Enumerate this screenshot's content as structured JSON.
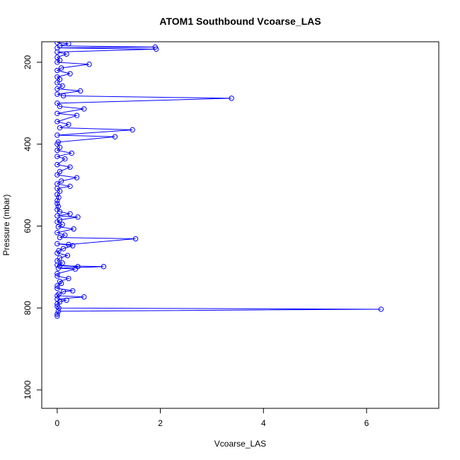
{
  "chart_data": {
    "type": "line",
    "title": "ATOM1 Southbound Vcoarse_LAS",
    "xlabel": "Vcoarse_LAS",
    "ylabel": "Pressure (mbar)",
    "xlim": [
      -0.3,
      7.4
    ],
    "ylim": [
      150,
      1045
    ],
    "y_reversed": true,
    "x_ticks": [
      "0",
      "2",
      "4",
      "6"
    ],
    "x_tick_values": [
      0,
      2,
      4,
      6
    ],
    "y_ticks": [
      "200",
      "400",
      "600",
      "800",
      "1000"
    ],
    "y_tick_values": [
      200,
      400,
      600,
      800,
      1000
    ],
    "grid": false,
    "series_color": "#0000ff",
    "marker": "open-circle",
    "series": [
      {
        "values_note_free": true,
        "points": [
          [
            0.0,
            820
          ],
          [
            0.0,
            815
          ],
          [
            0.02,
            808
          ],
          [
            6.28,
            803
          ],
          [
            0.03,
            800
          ],
          [
            0.0,
            796
          ],
          [
            0.0,
            790
          ],
          [
            0.05,
            785
          ],
          [
            0.18,
            781
          ],
          [
            0.0,
            778
          ],
          [
            0.52,
            773
          ],
          [
            0.0,
            770
          ],
          [
            0.03,
            766
          ],
          [
            0.12,
            760
          ],
          [
            0.3,
            758
          ],
          [
            0.0,
            752
          ],
          [
            0.0,
            746
          ],
          [
            0.08,
            740
          ],
          [
            0.05,
            735
          ],
          [
            0.22,
            728
          ],
          [
            0.0,
            722
          ],
          [
            0.0,
            716
          ],
          [
            0.35,
            705
          ],
          [
            0.02,
            703
          ],
          [
            0.9,
            699
          ],
          [
            0.05,
            697
          ],
          [
            0.4,
            699
          ],
          [
            0.0,
            695
          ],
          [
            0.1,
            690
          ],
          [
            0.0,
            685
          ],
          [
            0.05,
            678
          ],
          [
            0.2,
            672
          ],
          [
            0.0,
            666
          ],
          [
            0.03,
            660
          ],
          [
            0.12,
            655
          ],
          [
            0.3,
            648
          ],
          [
            0.0,
            643
          ],
          [
            0.22,
            645
          ],
          [
            1.52,
            631
          ],
          [
            0.05,
            628
          ],
          [
            0.15,
            622
          ],
          [
            0.0,
            616
          ],
          [
            0.32,
            607
          ],
          [
            0.02,
            602
          ],
          [
            0.1,
            596
          ],
          [
            0.0,
            590
          ],
          [
            0.05,
            585
          ],
          [
            0.4,
            578
          ],
          [
            0.0,
            575
          ],
          [
            0.25,
            570
          ],
          [
            0.05,
            565
          ],
          [
            0.0,
            560
          ],
          [
            0.02,
            552
          ],
          [
            0.0,
            545
          ],
          [
            0.0,
            538
          ],
          [
            0.03,
            530
          ],
          [
            0.0,
            523
          ],
          [
            0.05,
            515
          ],
          [
            0.0,
            508
          ],
          [
            0.25,
            503
          ],
          [
            0.0,
            497
          ],
          [
            0.08,
            490
          ],
          [
            0.38,
            482
          ],
          [
            0.0,
            475
          ],
          [
            0.05,
            467
          ],
          [
            0.25,
            456
          ],
          [
            0.0,
            450
          ],
          [
            0.15,
            436
          ],
          [
            0.0,
            430
          ],
          [
            0.28,
            422
          ],
          [
            0.0,
            415
          ],
          [
            0.05,
            408
          ],
          [
            0.0,
            400
          ],
          [
            0.02,
            395
          ],
          [
            1.12,
            382
          ],
          [
            0.0,
            378
          ],
          [
            1.46,
            365
          ],
          [
            0.05,
            360
          ],
          [
            0.22,
            352
          ],
          [
            0.0,
            345
          ],
          [
            0.38,
            330
          ],
          [
            0.0,
            325
          ],
          [
            0.52,
            314
          ],
          [
            0.05,
            308
          ],
          [
            0.0,
            300
          ],
          [
            3.38,
            288
          ],
          [
            0.12,
            282
          ],
          [
            0.0,
            278
          ],
          [
            0.45,
            270
          ],
          [
            0.0,
            265
          ],
          [
            0.1,
            258
          ],
          [
            0.0,
            250
          ],
          [
            0.05,
            242
          ],
          [
            0.0,
            236
          ],
          [
            0.25,
            228
          ],
          [
            0.0,
            220
          ],
          [
            0.08,
            214
          ],
          [
            0.62,
            205
          ],
          [
            0.0,
            200
          ],
          [
            0.05,
            195
          ],
          [
            0.0,
            188
          ],
          [
            0.18,
            180
          ],
          [
            0.0,
            175
          ],
          [
            1.92,
            168
          ],
          [
            0.0,
            165
          ],
          [
            1.9,
            163
          ],
          [
            0.05,
            160
          ],
          [
            0.22,
            155
          ],
          [
            0.0,
            152
          ]
        ]
      }
    ]
  }
}
